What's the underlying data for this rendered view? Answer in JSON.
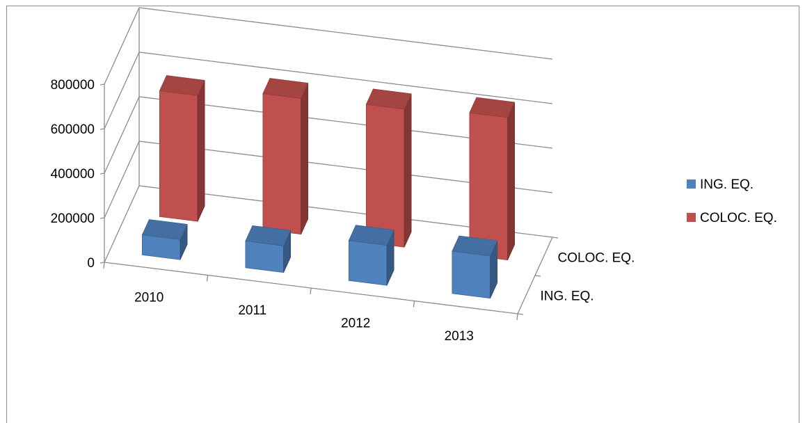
{
  "chart_data": {
    "type": "bar",
    "subtype": "3d-column",
    "categories": [
      "2010",
      "2011",
      "2012",
      "2013"
    ],
    "series": [
      {
        "name": "ING. EQ.",
        "values": [
          90000,
          120000,
          180000,
          190000
        ],
        "color": "#4f81bd"
      },
      {
        "name": "COLOC. EQ.",
        "values": [
          565000,
          610000,
          620000,
          640000
        ],
        "color": "#c0504d"
      }
    ],
    "ylim": [
      0,
      800000
    ],
    "yticks": [
      "0",
      "200000",
      "400000",
      "600000",
      "800000"
    ],
    "depth_labels": [
      "ING. EQ.",
      "COLOC. EQ."
    ],
    "grid": true,
    "legend": "right"
  }
}
